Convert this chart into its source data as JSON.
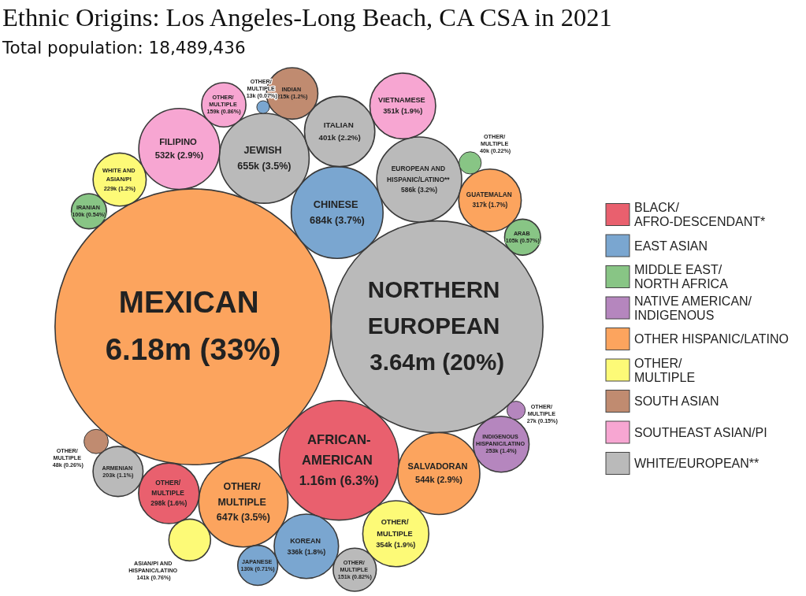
{
  "chart_data": {
    "type": "other",
    "title": "Ethnic Origins: Los Angeles-Long Beach, CA CSA in 2021",
    "subtitle": "Total population: 18,489,436",
    "categories": [
      "MEXICAN",
      "NORTHERN\nEUROPEAN",
      "AFRICAN-\nAMERICAN",
      "CHINESE",
      "JEWISH",
      "OTHER/\nMULTIPLE",
      "EUROPEAN AND\nHISPANIC/LATINO**",
      "SALVADORAN",
      "FILIPINO",
      "ITALIAN",
      "OTHER/\nMULTIPLE",
      "VIETNAMESE",
      "KOREAN",
      "GUATEMALAN",
      "OTHER/\nMULTIPLE",
      "INDIGENOUS\nHISPANIC/LATINO",
      "WHITE AND\nASIAN/PI",
      "INDIAN",
      "ARMENIAN",
      "OTHER/\nMULTIPLE",
      "OTHER/\nMULTIPLE",
      "ASIAN/PI AND\nHISPANIC/LATINO",
      "JAPANESE",
      "ARAB",
      "IRANIAN",
      "OTHER/\nMULTIPLE",
      "OTHER/\nMULTIPLE",
      "OTHER/\nMULTIPLE",
      "OTHER/\nMULTIPLE"
    ],
    "series": [
      {
        "name": "BLACK/ AFRO-DESCENDANT*",
        "color": "#e9606e",
        "values": [
          null,
          null,
          1160000,
          null,
          null,
          null,
          null,
          null,
          null,
          null,
          298000,
          null,
          null,
          null,
          null,
          null,
          null,
          null,
          null,
          null,
          null,
          null,
          null,
          null,
          null,
          null,
          null,
          null,
          null
        ],
        "value_labels": [
          null,
          null,
          "1.16m (6.3%)",
          null,
          null,
          null,
          null,
          null,
          null,
          null,
          "298k (1.6%)",
          null,
          null,
          null,
          null,
          null,
          null,
          null,
          null,
          null,
          null,
          null,
          null,
          null,
          null,
          null,
          null,
          null,
          null
        ]
      },
      {
        "name": "EAST ASIAN",
        "color": "#7aa6d0",
        "values": [
          null,
          null,
          null,
          684000,
          null,
          null,
          null,
          null,
          null,
          null,
          null,
          null,
          336000,
          null,
          null,
          null,
          null,
          null,
          null,
          null,
          null,
          null,
          130000,
          null,
          null,
          null,
          null,
          null,
          13000
        ],
        "value_labels": [
          null,
          null,
          null,
          "684k (3.7%)",
          null,
          null,
          null,
          null,
          null,
          null,
          null,
          null,
          "336k (1.8%)",
          null,
          null,
          null,
          null,
          null,
          null,
          null,
          null,
          null,
          "130k (0.71%)",
          null,
          null,
          null,
          null,
          null,
          "13k (0.07%)"
        ]
      },
      {
        "name": "MIDDLE EAST/ NORTH AFRICA",
        "color": "#88c585",
        "values": [
          null,
          null,
          null,
          null,
          null,
          null,
          null,
          null,
          null,
          null,
          null,
          null,
          null,
          null,
          null,
          null,
          null,
          null,
          null,
          null,
          null,
          null,
          null,
          105000,
          100000,
          null,
          40000,
          null,
          null
        ],
        "value_labels": [
          null,
          null,
          null,
          null,
          null,
          null,
          null,
          null,
          null,
          null,
          null,
          null,
          null,
          null,
          null,
          null,
          null,
          null,
          null,
          null,
          null,
          null,
          null,
          "105k (0.57%)",
          "100k (0.54%)",
          null,
          "40k (0.22%)",
          null,
          null
        ]
      },
      {
        "name": "NATIVE AMERICAN/ INDIGENOUS",
        "color": "#b586be",
        "values": [
          null,
          null,
          null,
          null,
          null,
          null,
          null,
          null,
          null,
          null,
          null,
          null,
          null,
          null,
          null,
          253000,
          null,
          null,
          null,
          null,
          null,
          null,
          null,
          null,
          null,
          null,
          null,
          27000,
          null
        ],
        "value_labels": [
          null,
          null,
          null,
          null,
          null,
          null,
          null,
          null,
          null,
          null,
          null,
          null,
          null,
          null,
          null,
          "253k (1.4%)",
          null,
          null,
          null,
          null,
          null,
          null,
          null,
          null,
          null,
          null,
          null,
          "27k (0.15%)",
          null
        ]
      },
      {
        "name": "OTHER HISPANIC/LATINO",
        "color": "#fca45e",
        "values": [
          6180000,
          null,
          null,
          null,
          null,
          647000,
          null,
          544000,
          null,
          null,
          null,
          null,
          null,
          317000,
          null,
          null,
          null,
          null,
          null,
          null,
          null,
          null,
          null,
          null,
          null,
          null,
          null,
          null,
          null
        ],
        "value_labels": [
          "6.18m (33%)",
          null,
          null,
          null,
          null,
          "647k (3.5%)",
          null,
          "544k (2.9%)",
          null,
          null,
          null,
          null,
          null,
          "317k (1.7%)",
          null,
          null,
          null,
          null,
          null,
          null,
          null,
          null,
          null,
          null,
          null,
          null,
          null,
          null,
          null
        ]
      },
      {
        "name": "OTHER/ MULTIPLE",
        "color": "#fdfa77",
        "values": [
          null,
          null,
          null,
          null,
          null,
          null,
          null,
          null,
          null,
          null,
          null,
          null,
          null,
          null,
          354000,
          null,
          229000,
          null,
          null,
          null,
          null,
          141000,
          null,
          null,
          null,
          null,
          null,
          null,
          null
        ],
        "value_labels": [
          null,
          null,
          null,
          null,
          null,
          null,
          null,
          null,
          null,
          null,
          null,
          null,
          null,
          null,
          "354k (1.9%)",
          null,
          "229k (1.2%)",
          null,
          null,
          null,
          null,
          "141k (0.76%)",
          null,
          null,
          null,
          null,
          null,
          null,
          null
        ]
      },
      {
        "name": "SOUTH ASIAN",
        "color": "#c08b70",
        "values": [
          null,
          null,
          null,
          null,
          null,
          null,
          null,
          null,
          null,
          null,
          null,
          null,
          null,
          null,
          null,
          null,
          null,
          215000,
          null,
          null,
          null,
          null,
          null,
          null,
          null,
          48000,
          null,
          null,
          null
        ],
        "value_labels": [
          null,
          null,
          null,
          null,
          null,
          null,
          null,
          null,
          null,
          null,
          null,
          null,
          null,
          null,
          null,
          null,
          null,
          "215k (1.2%)",
          null,
          null,
          null,
          null,
          null,
          null,
          null,
          "48k (0.26%)",
          null,
          null,
          null
        ]
      },
      {
        "name": "SOUTHEAST ASIAN/PI",
        "color": "#f7a6d2",
        "values": [
          null,
          null,
          null,
          null,
          null,
          null,
          null,
          null,
          532000,
          null,
          null,
          351000,
          null,
          null,
          null,
          null,
          null,
          null,
          null,
          null,
          159000,
          null,
          null,
          null,
          null,
          null,
          null,
          null,
          null
        ],
        "value_labels": [
          null,
          null,
          null,
          null,
          null,
          null,
          null,
          null,
          "532k (2.9%)",
          null,
          null,
          "351k (1.9%)",
          null,
          null,
          null,
          null,
          null,
          null,
          null,
          null,
          "159k (0.86%)",
          null,
          null,
          null,
          null,
          null,
          null,
          null,
          null
        ]
      },
      {
        "name": "WHITE/EUROPEAN**",
        "color": "#bababa",
        "values": [
          null,
          3640000,
          null,
          null,
          655000,
          null,
          586000,
          null,
          null,
          401000,
          null,
          null,
          null,
          null,
          null,
          null,
          null,
          null,
          203000,
          151000,
          null,
          null,
          null,
          null,
          null,
          null,
          null,
          null,
          null
        ],
        "value_labels": [
          null,
          "3.64m (20%)",
          null,
          null,
          "655k (3.5%)",
          null,
          "586k (3.2%)",
          null,
          null,
          "401k (2.2%)",
          null,
          null,
          null,
          null,
          null,
          null,
          null,
          null,
          "203k (1.1%)",
          "151k (0.82%)",
          null,
          null,
          null,
          null,
          null,
          null,
          null,
          null,
          null
        ]
      }
    ],
    "legend": "right"
  }
}
